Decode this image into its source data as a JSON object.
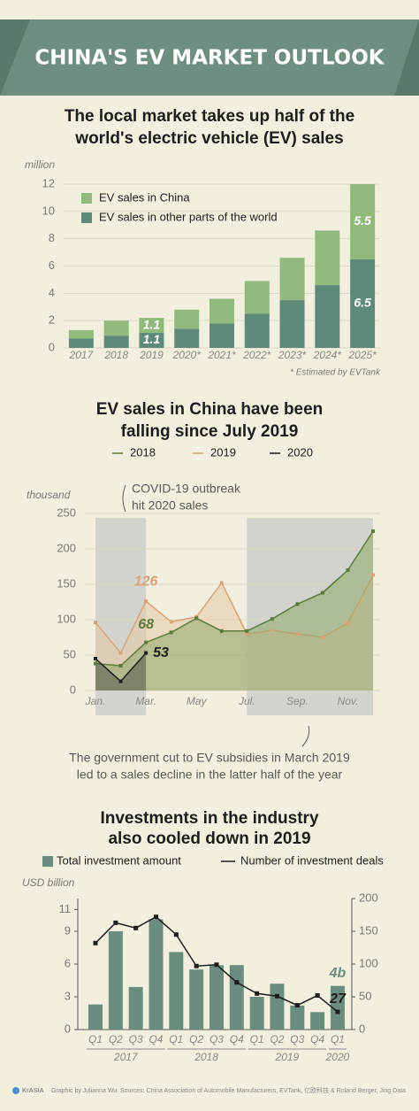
{
  "header": {
    "title": "CHINA'S EV MARKET OUTLOOK"
  },
  "chart_data": [
    {
      "type": "stacked-bar",
      "title": [
        "The local market takes up half of the",
        "world's electric vehicle (EV) sales"
      ],
      "y_label": "million",
      "note": "* Estimated by EVTank",
      "categories": [
        "2017",
        "2018",
        "2019",
        "2020*",
        "2021*",
        "2022*",
        "2023*",
        "2024*",
        "2025*"
      ],
      "series": [
        {
          "name": "EV sales in other parts of the world",
          "color": "#5f8a79",
          "values": [
            0.7,
            0.9,
            1.1,
            1.4,
            1.8,
            2.5,
            3.5,
            4.6,
            6.5
          ],
          "value_labels": [
            null,
            null,
            "1.1",
            null,
            null,
            null,
            null,
            null,
            "6.5"
          ]
        },
        {
          "name": "EV sales in China",
          "color": "#8fba7b",
          "values": [
            0.6,
            1.1,
            1.1,
            1.4,
            1.8,
            2.4,
            3.1,
            4.0,
            5.5
          ],
          "value_labels": [
            null,
            null,
            "1.1",
            null,
            null,
            null,
            null,
            null,
            "5.5"
          ]
        }
      ],
      "ylim": [
        0,
        12
      ],
      "yticks": [
        0,
        2,
        4,
        6,
        8,
        10,
        12
      ],
      "grid": true
    },
    {
      "type": "area-line",
      "title": [
        "EV sales in China have been",
        "falling since July 2019"
      ],
      "y_label": "thousand",
      "categories": [
        "Jan.",
        null,
        "Mar.",
        null,
        "May",
        null,
        "Jul.",
        null,
        "Sep.",
        null,
        "Nov.",
        null
      ],
      "series": [
        {
          "name": "2018",
          "color": "#5b7a3c",
          "fill": "#8fa96a",
          "values": [
            38,
            35,
            68,
            82,
            102,
            84,
            84,
            101,
            122,
            138,
            170,
            225
          ],
          "value_labels": [
            null,
            null,
            "68",
            null,
            null,
            null,
            null,
            null,
            null,
            null,
            null,
            null
          ]
        },
        {
          "name": "2019",
          "color": "#d9a27a",
          "fill": "#e6c8a4",
          "values": [
            96,
            53,
            126,
            97,
            104,
            152,
            80,
            85,
            80,
            75,
            95,
            163
          ],
          "value_labels": [
            null,
            null,
            "126",
            null,
            null,
            null,
            null,
            null,
            null,
            null,
            null,
            null
          ]
        },
        {
          "name": "2020",
          "color": "#1d1d1b",
          "fill": "#55554f",
          "values": [
            45,
            13,
            53,
            null,
            null,
            null,
            null,
            null,
            null,
            null,
            null,
            null
          ],
          "value_labels": [
            null,
            null,
            "53",
            null,
            null,
            null,
            null,
            null,
            null,
            null,
            null,
            null
          ]
        }
      ],
      "annotations": [
        [
          "COVID-19 outbreak",
          "hit 2020 sales"
        ],
        [
          "The government cut to EV subsidies in March 2019",
          "led to a sales decline in the latter half of the year"
        ]
      ],
      "ylim": [
        0,
        250
      ],
      "yticks": [
        0,
        50,
        100,
        150,
        200,
        250
      ],
      "grid": true
    },
    {
      "type": "bar-line",
      "title": [
        "Investments in the industry",
        "also cooled down in 2019"
      ],
      "y_label": "USD billion",
      "groups": [
        {
          "name": "2017",
          "categories": [
            "Q1",
            "Q2",
            "Q3",
            "Q4"
          ]
        },
        {
          "name": "2018",
          "categories": [
            "Q1",
            "Q2",
            "Q3",
            "Q4"
          ]
        },
        {
          "name": "2019",
          "categories": [
            "Q1",
            "Q2",
            "Q3",
            "Q4"
          ]
        },
        {
          "name": "2020",
          "categories": [
            "Q1"
          ]
        }
      ],
      "series": [
        {
          "name": "Total investment amount",
          "type": "bar",
          "color": "#6a8d7e",
          "values": [
            2.3,
            9.0,
            3.9,
            10.1,
            7.1,
            5.5,
            5.9,
            5.9,
            3.0,
            4.2,
            2.2,
            1.6,
            4
          ],
          "value_labels": [
            null,
            null,
            null,
            null,
            null,
            null,
            null,
            null,
            null,
            null,
            null,
            null,
            "4b"
          ]
        },
        {
          "name": "Number of investment deals",
          "type": "line",
          "axis": "y2",
          "color": "#1d1d1b",
          "values": [
            132,
            163,
            155,
            172,
            145,
            97,
            99,
            72,
            55,
            51,
            37,
            52,
            27
          ],
          "value_labels": [
            null,
            null,
            null,
            null,
            null,
            null,
            null,
            null,
            null,
            null,
            null,
            null,
            "27"
          ]
        }
      ],
      "ylim": [
        0,
        12
      ],
      "yticks": [
        0,
        3,
        6,
        9,
        11
      ],
      "y2lim": [
        0,
        200
      ],
      "y2ticks": [
        0,
        50,
        100,
        150,
        200
      ]
    }
  ],
  "footer": {
    "brand": "KrASIA",
    "credit": "Graphic by Julianna Wu",
    "sources": "Sources: China Association of Automobile Manufacturers, EVTank, 亿欧科技 & Roland Berger, Jing Data"
  }
}
